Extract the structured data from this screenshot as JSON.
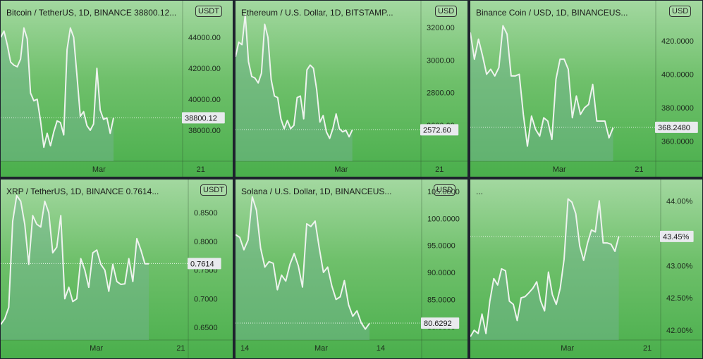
{
  "charts": [
    {
      "title": "Bitcoin / TetherUS, 1D, BINANCE  38800.12...",
      "currency": "USDT",
      "last_label": "38800.12",
      "x_labels": [
        "Mar",
        "21"
      ],
      "chart_data": {
        "type": "area",
        "title": "Bitcoin / TetherUS, 1D, BINANCE  38800.12...",
        "ylim": [
          36000,
          46000
        ],
        "y_ticks": [
          "44000.00",
          "42000.00",
          "40000.00",
          "38000.00"
        ],
        "y_tick_values": [
          44000,
          42000,
          40000,
          38000
        ],
        "last": 38800.12,
        "values": [
          44000,
          44400,
          43500,
          42400,
          42200,
          42100,
          42600,
          44600,
          43900,
          40400,
          39900,
          40000,
          38600,
          36900,
          37800,
          37000,
          37900,
          38600,
          38500,
          37700,
          43200,
          44600,
          44000,
          41500,
          38900,
          39200,
          38300,
          38000,
          38400,
          42000,
          39300,
          38700,
          38800,
          37800,
          38800
        ]
      }
    },
    {
      "title": "Ethereum / U.S. Dollar, 1D, BITSTAMP...",
      "currency": "USD",
      "last_label": "2572.60",
      "x_labels": [
        "Mar",
        "21"
      ],
      "chart_data": {
        "type": "area",
        "title": "Ethereum / U.S. Dollar, 1D, BITSTAMP...",
        "ylim": [
          2380,
          3330
        ],
        "y_ticks": [
          "3200.00",
          "3000.00",
          "2800.00",
          "2600.00"
        ],
        "y_tick_values": [
          3200,
          3000,
          2800,
          2600
        ],
        "last": 2572.6,
        "values": [
          3020,
          3110,
          3095,
          3280,
          2990,
          2900,
          2890,
          2860,
          2920,
          3220,
          3140,
          2880,
          2780,
          2770,
          2640,
          2580,
          2630,
          2580,
          2600,
          2770,
          2780,
          2640,
          2940,
          2970,
          2950,
          2820,
          2620,
          2660,
          2560,
          2520,
          2580,
          2670,
          2580,
          2560,
          2570,
          2530,
          2572
        ]
      }
    },
    {
      "title": "Binance Coin / USD, 1D, BINANCEUS...",
      "currency": "USD",
      "last_label": "368.2480",
      "x_labels": [
        "Mar",
        "21"
      ],
      "chart_data": {
        "type": "area",
        "title": "Binance Coin / USD, 1D, BINANCEUS...",
        "ylim": [
          348,
          444
        ],
        "y_ticks": [
          "420.0000",
          "400.0000",
          "380.0000",
          "360.0000"
        ],
        "y_tick_values": [
          420,
          400,
          380,
          360
        ],
        "last": 368.248,
        "values": [
          425,
          409,
          421,
          411,
          400,
          403,
          399,
          404,
          429,
          424,
          399,
          399,
          400,
          376,
          357,
          375,
          367,
          363,
          374,
          372,
          361,
          397,
          409,
          409,
          403,
          374,
          387,
          376,
          380,
          382,
          394,
          372,
          372,
          372,
          362,
          368
        ]
      }
    },
    {
      "title": "XRP / TetherUS, 1D, BINANCE  0.7614...",
      "currency": "USDT",
      "last_label": "0.7614",
      "x_labels": [
        "Mar",
        "21"
      ],
      "chart_data": {
        "type": "area",
        "title": "XRP / TetherUS, 1D, BINANCE  0.7614...",
        "ylim": [
          0.628,
          0.908
        ],
        "y_ticks": [
          "0.8500",
          "0.8000",
          "0.7500",
          "0.7000",
          "0.6500"
        ],
        "y_tick_values": [
          0.85,
          0.8,
          0.75,
          0.7,
          0.65
        ],
        "last": 0.7614,
        "values": [
          0.655,
          0.665,
          0.685,
          0.835,
          0.88,
          0.87,
          0.83,
          0.76,
          0.845,
          0.83,
          0.825,
          0.87,
          0.85,
          0.78,
          0.79,
          0.845,
          0.7,
          0.72,
          0.695,
          0.7,
          0.77,
          0.75,
          0.72,
          0.78,
          0.785,
          0.76,
          0.75,
          0.713,
          0.76,
          0.73,
          0.725,
          0.726,
          0.77,
          0.73,
          0.805,
          0.785,
          0.761,
          0.761
        ]
      }
    },
    {
      "title": "Solana / U.S. Dollar, 1D, BINANCEUS...",
      "currency": "USD",
      "last_label": "80.6292",
      "x_labels": [
        "14",
        "Mar",
        "14"
      ],
      "chart_data": {
        "type": "area",
        "title": "Solana / U.S. Dollar, 1D, BINANCEUS...",
        "ylim": [
          77.5,
          107.2
        ],
        "y_ticks": [
          "105.0000",
          "100.0000",
          "95.0000",
          "90.0000",
          "85.0000",
          "80.0000"
        ],
        "y_tick_values": [
          105,
          100,
          95,
          90,
          85,
          80
        ],
        "last": 80.6292,
        "values": [
          97.0,
          96.5,
          94.2,
          96.0,
          104.0,
          101.5,
          94.5,
          91.0,
          92.0,
          91.7,
          86.8,
          89.5,
          88.4,
          91.5,
          93.5,
          91.2,
          87.3,
          99.0,
          98.5,
          99.5,
          94.5,
          90.0,
          91.0,
          87.5,
          85.0,
          85.5,
          88.5,
          84.0,
          81.9,
          82.9,
          80.7,
          79.5,
          80.6
        ]
      }
    },
    {
      "title": "...",
      "currency": "",
      "last_label": "43.45%",
      "x_labels": [
        "Mar",
        "21"
      ],
      "chart_data": {
        "type": "area",
        "title": "...",
        "ylim": [
          41.85,
          44.33
        ],
        "y_ticks": [
          "44.00%",
          "43.50%",
          "43.00%",
          "42.50%",
          "42.00%"
        ],
        "y_tick_values": [
          44.0,
          43.5,
          43.0,
          42.5,
          42.0
        ],
        "last": 43.45,
        "values": [
          41.9,
          42.0,
          41.95,
          42.25,
          41.95,
          42.45,
          42.8,
          42.7,
          42.95,
          42.92,
          42.45,
          42.4,
          42.15,
          42.5,
          42.52,
          42.58,
          42.65,
          42.75,
          42.45,
          42.3,
          42.9,
          42.55,
          42.4,
          42.65,
          43.1,
          44.03,
          43.98,
          43.8,
          43.3,
          43.08,
          43.35,
          43.55,
          43.52,
          44.0,
          43.35,
          43.35,
          43.33,
          43.22,
          43.45
        ]
      }
    }
  ]
}
